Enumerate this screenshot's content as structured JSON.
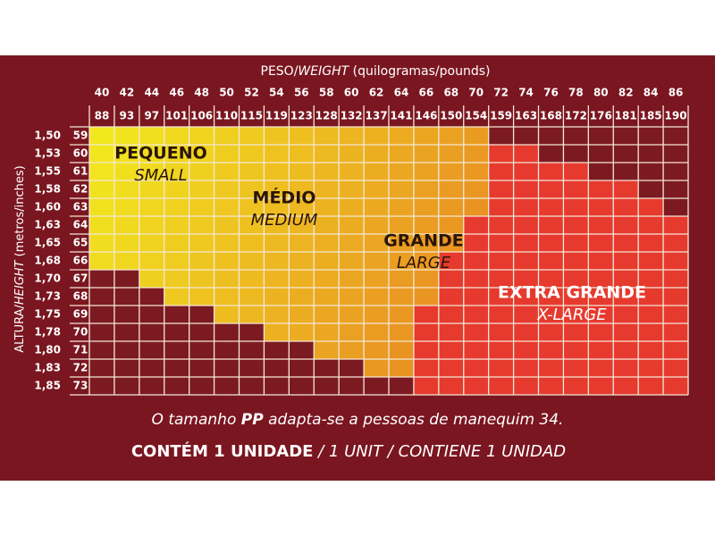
{
  "weight_title": {
    "plain": "PESO/",
    "italic": "WEIGHT",
    "units": " (quilogramas/pounds)"
  },
  "height_title": {
    "plain": "ALTURA/",
    "italic": "HEIGHT",
    "units": " (metros/inches)"
  },
  "weights_kg": [
    40,
    42,
    44,
    46,
    48,
    50,
    52,
    54,
    56,
    58,
    60,
    62,
    64,
    66,
    68,
    70,
    72,
    74,
    76,
    78,
    80,
    82,
    84,
    86
  ],
  "weights_lb": [
    88,
    93,
    97,
    101,
    106,
    110,
    115,
    119,
    123,
    128,
    132,
    137,
    141,
    146,
    150,
    154,
    159,
    163,
    168,
    172,
    176,
    181,
    185,
    190
  ],
  "heights_m": [
    "1,50",
    "1,53",
    "1,55",
    "1,58",
    "1,60",
    "1,63",
    "1,65",
    "1,68",
    "1,70",
    "1,73",
    "1,75",
    "1,78",
    "1,80",
    "1,83",
    "1,85"
  ],
  "heights_in": [
    59,
    60,
    61,
    62,
    63,
    64,
    65,
    66,
    67,
    68,
    69,
    70,
    71,
    72,
    73
  ],
  "sizes": [
    {
      "name": "PEQUENO",
      "english": "SMALL"
    },
    {
      "name": "MÉDIO",
      "english": "MEDIUM"
    },
    {
      "name": "GRANDE",
      "english": "LARGE"
    },
    {
      "name": "EXTRA GRANDE",
      "english": "X-LARGE"
    }
  ],
  "footer": {
    "note_start": "O tamanho ",
    "note_bold": "PP",
    "note_end": " adapta-se a pessoas de manequim 34.",
    "contents_bold": "CONTÉM 1 UNIDADE",
    "contents_rest": " / 1 UNIT / CONTIENE 1 UNIDAD"
  }
}
